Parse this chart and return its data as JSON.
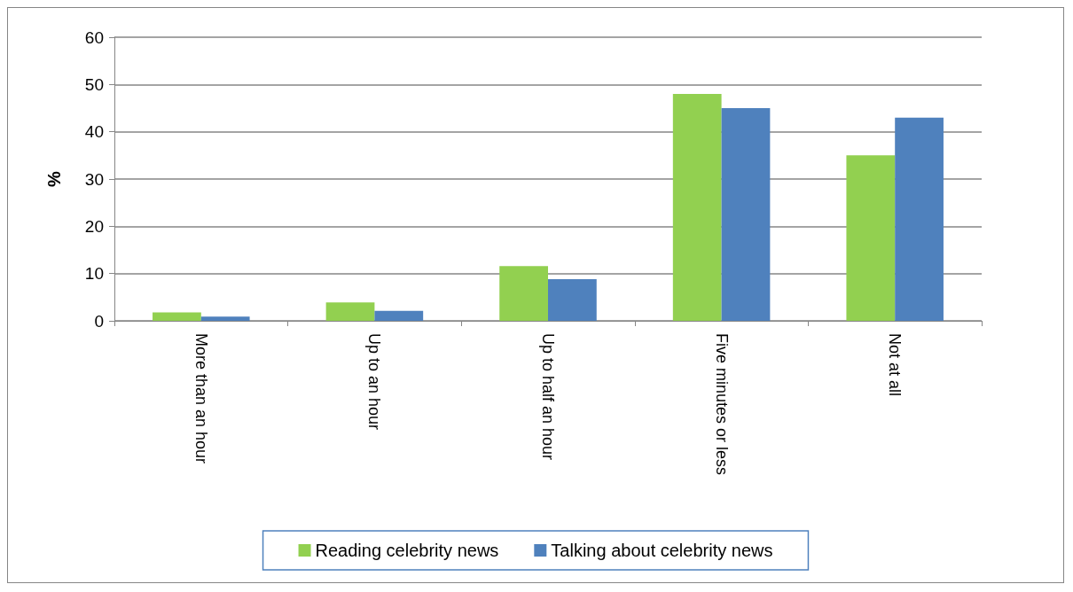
{
  "chart_data": {
    "type": "bar",
    "ylabel": "%",
    "categories": [
      "More than an hour",
      "Up to an hour",
      "Up to half an hour",
      "Five minutes or less",
      "Not at all"
    ],
    "series": [
      {
        "name": "Reading celebrity news",
        "color": "#92d050",
        "values": [
          1.8,
          3.9,
          11.6,
          48,
          35
        ]
      },
      {
        "name": "Talking about celebrity news",
        "color": "#4f81bd",
        "values": [
          0.9,
          2.1,
          8.8,
          45,
          43
        ]
      }
    ],
    "ylim": [
      0,
      60
    ],
    "yticks": [
      0,
      10,
      20,
      30,
      40,
      50,
      60
    ],
    "grid": "y",
    "legend": "bottom"
  }
}
